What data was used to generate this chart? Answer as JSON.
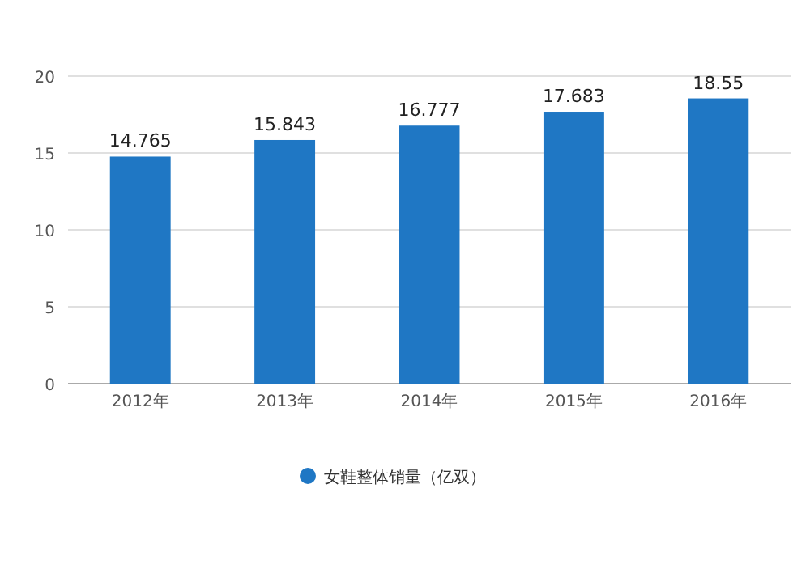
{
  "chart_data": {
    "type": "bar",
    "categories": [
      "2012年",
      "2013年",
      "2014年",
      "2015年",
      "2016年"
    ],
    "series": [
      {
        "name": "女鞋整体销量（亿双）",
        "color": "#1f77c4",
        "values": [
          14.765,
          15.843,
          16.777,
          17.683,
          18.55
        ]
      }
    ],
    "ylim": [
      0,
      20
    ],
    "yticks": [
      0,
      5,
      10,
      15,
      20
    ],
    "grid": "y",
    "data_labels": true,
    "legend": "bottom"
  }
}
